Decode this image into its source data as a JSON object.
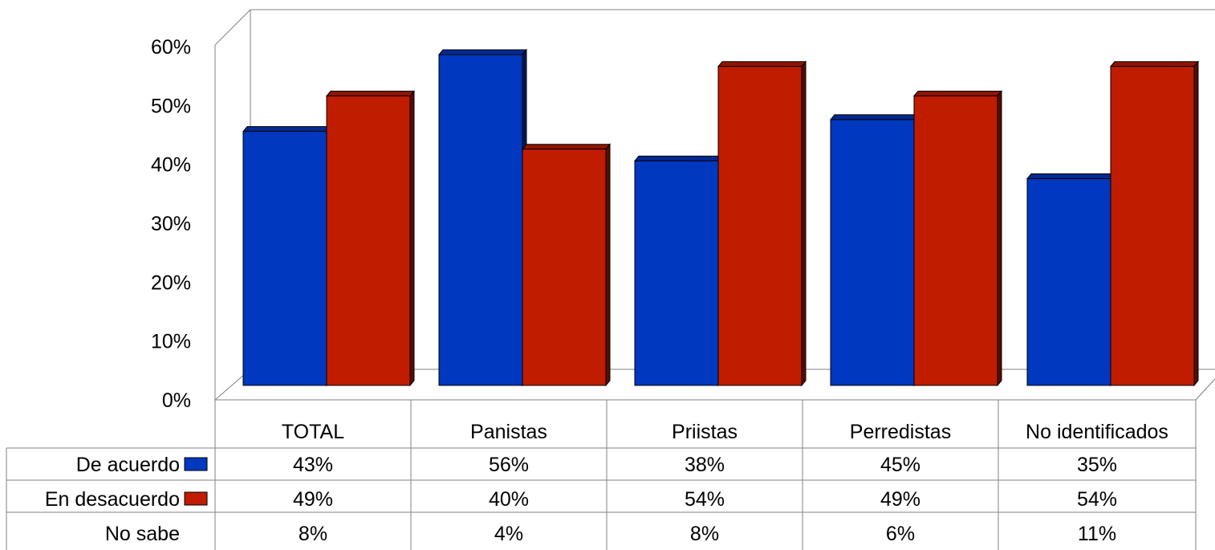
{
  "chart_data": {
    "type": "bar",
    "categories": [
      "TOTAL",
      "Panistas",
      "Priistas",
      "Perredistas",
      "No identificados"
    ],
    "series": [
      {
        "name": "De acuerdo",
        "values": [
          43,
          56,
          38,
          45,
          35
        ],
        "color": "#0038c0",
        "plotted": true
      },
      {
        "name": "En desacuerdo",
        "values": [
          49,
          40,
          54,
          49,
          54
        ],
        "color": "#c01c00",
        "plotted": true
      },
      {
        "name": "No sabe",
        "values": [
          8,
          4,
          8,
          6,
          11
        ],
        "plotted": false
      }
    ],
    "table_labels": [
      [
        "43%",
        "56%",
        "38%",
        "45%",
        "35%"
      ],
      [
        "49%",
        "40%",
        "54%",
        "49%",
        "54%"
      ],
      [
        "8%",
        "4%",
        "8%",
        "6%",
        "11%"
      ]
    ],
    "yticks": [
      "0%",
      "10%",
      "20%",
      "30%",
      "40%",
      "50%",
      "60%"
    ],
    "ylim": [
      0,
      60
    ],
    "grid": false,
    "legend": "data-table",
    "style": "3d-clustered-columns"
  }
}
